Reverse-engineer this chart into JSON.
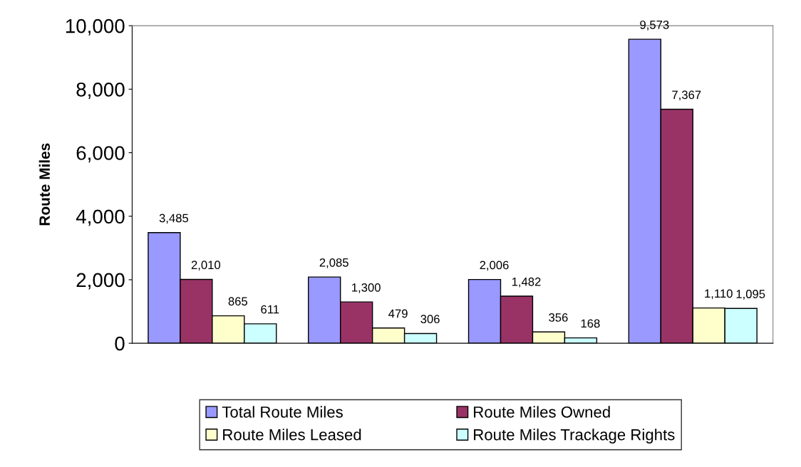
{
  "chart_data": {
    "type": "bar",
    "ylabel": "Route Miles",
    "categories": [
      null,
      null,
      null,
      null
    ],
    "series": [
      {
        "name": "Total Route Miles",
        "color": "#9999ff",
        "values": [
          3485,
          2085,
          2006,
          9573
        ],
        "value_labels": [
          "3,485",
          "2,085",
          "2,006",
          "9,573"
        ]
      },
      {
        "name": "Route Miles Owned",
        "color": "#993366",
        "values": [
          2010,
          1300,
          1482,
          7367
        ],
        "value_labels": [
          "2,010",
          "1,300",
          "1,482",
          "7,367"
        ]
      },
      {
        "name": "Route Miles Leased",
        "color": "#ffffcc",
        "values": [
          865,
          479,
          356,
          1110
        ],
        "value_labels": [
          "865",
          "479",
          "356",
          "1,110"
        ]
      },
      {
        "name": "Route Miles Trackage Rights",
        "color": "#ccffff",
        "values": [
          611,
          306,
          168,
          1095
        ],
        "value_labels": [
          "611",
          "306",
          "168",
          "1,095"
        ]
      }
    ],
    "ylim": [
      0,
      10000
    ],
    "yticks": [
      0,
      {
        "value": 2000,
        "label": "2,000"
      },
      {
        "value": 4000,
        "label": "4,000"
      },
      {
        "value": 6000,
        "label": "6,000"
      },
      {
        "value": 8000,
        "label": "8,000"
      },
      {
        "value": 10000,
        "label": "10,000"
      }
    ],
    "grid": false,
    "legend": "bottom"
  }
}
